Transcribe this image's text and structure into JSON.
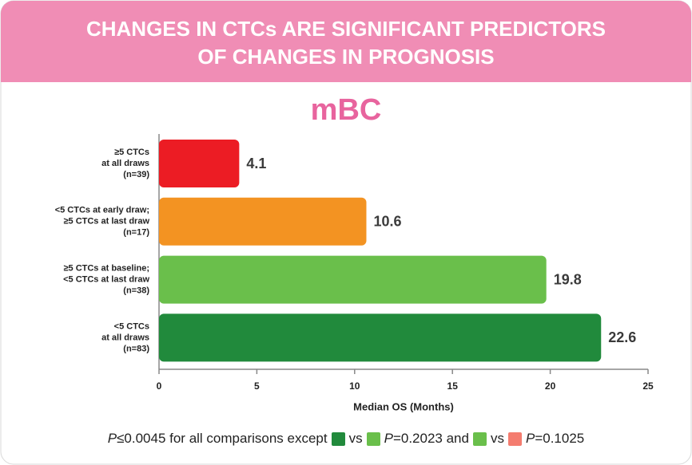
{
  "chart_data": {
    "type": "bar",
    "orientation": "horizontal",
    "title": [
      "CHANGES IN CTCs ARE SIGNIFICANT PREDICTORS",
      "OF CHANGES IN PROGNOSIS"
    ],
    "subtitle": "mBC",
    "categories": [
      [
        "≥5 CTCs",
        "at all draws",
        "(n=39)"
      ],
      [
        "<5 CTCs at early draw;",
        "≥5 CTCs at last draw",
        "(n=17)"
      ],
      [
        "≥5 CTCs at baseline;",
        "<5 CTCs at last draw",
        "(n=38)"
      ],
      [
        "<5 CTCs",
        "at all draws",
        "(n=83)"
      ]
    ],
    "values": [
      4.1,
      10.6,
      19.8,
      22.6
    ],
    "colors": [
      "#ec1c24",
      "#f39322",
      "#6abf4b",
      "#218a3c"
    ],
    "xlim": [
      0,
      25
    ],
    "xticks": [
      0,
      5,
      10,
      15,
      20,
      25
    ],
    "x_label": "Median OS (Months)",
    "footnote": [
      "P",
      "≤0.0045 for all comparisons except",
      "vs",
      "P",
      "=0.2023 and",
      "vs",
      "P",
      "=0.1025"
    ]
  }
}
